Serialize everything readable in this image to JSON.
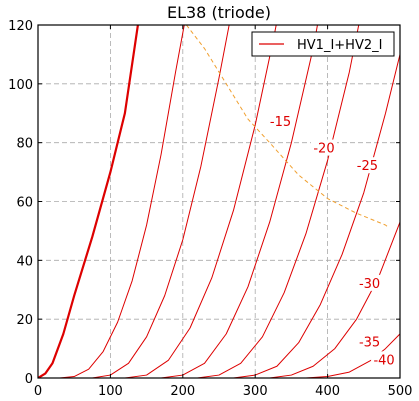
{
  "chart_data": {
    "type": "line",
    "title": "EL38 (triode)",
    "xlabel": "",
    "ylabel": "",
    "xlim": [
      0,
      500
    ],
    "ylim": [
      0,
      120
    ],
    "xticks": [
      0,
      100,
      200,
      300,
      400,
      500
    ],
    "yticks": [
      0,
      20,
      40,
      60,
      80,
      100,
      120
    ],
    "grid": true,
    "legend": {
      "position": "top-right",
      "entries": [
        "HV1_I+HV2_I"
      ]
    },
    "colors": {
      "curve": "#dd0000",
      "load_line": "#f0a030",
      "grid": "#aaaaaa"
    },
    "series": [
      {
        "label": "",
        "bold": true,
        "points": [
          [
            0,
            0
          ],
          [
            10,
            1.5
          ],
          [
            20,
            5
          ],
          [
            35,
            15
          ],
          [
            50,
            28
          ],
          [
            75,
            48
          ],
          [
            100,
            70
          ],
          [
            120,
            90
          ],
          [
            138,
            120
          ]
        ]
      },
      {
        "label": "",
        "bold": false,
        "points": [
          [
            30,
            0
          ],
          [
            50,
            0.5
          ],
          [
            70,
            3
          ],
          [
            90,
            9
          ],
          [
            110,
            19
          ],
          [
            130,
            33
          ],
          [
            150,
            52
          ],
          [
            170,
            76
          ],
          [
            190,
            104
          ],
          [
            202,
            120
          ]
        ]
      },
      {
        "label": "",
        "bold": false,
        "points": [
          [
            75,
            0
          ],
          [
            100,
            1
          ],
          [
            125,
            5
          ],
          [
            150,
            14
          ],
          [
            175,
            28
          ],
          [
            200,
            47
          ],
          [
            225,
            72
          ],
          [
            250,
            102
          ],
          [
            264,
            120
          ]
        ]
      },
      {
        "label": "-15",
        "bold": false,
        "points": [
          [
            120,
            0
          ],
          [
            150,
            1
          ],
          [
            180,
            6
          ],
          [
            210,
            17
          ],
          [
            240,
            34
          ],
          [
            270,
            57
          ],
          [
            300,
            86
          ],
          [
            325,
            115
          ],
          [
            329,
            120
          ]
        ]
      },
      {
        "label": "-20",
        "bold": false,
        "points": [
          [
            170,
            0
          ],
          [
            200,
            1
          ],
          [
            230,
            5
          ],
          [
            260,
            15
          ],
          [
            290,
            31
          ],
          [
            320,
            53
          ],
          [
            350,
            80
          ],
          [
            380,
            112
          ],
          [
            386,
            120
          ]
        ]
      },
      {
        "label": "-25",
        "bold": false,
        "points": [
          [
            220,
            0
          ],
          [
            250,
            1
          ],
          [
            280,
            5
          ],
          [
            310,
            14
          ],
          [
            340,
            29
          ],
          [
            370,
            49
          ],
          [
            400,
            74
          ],
          [
            430,
            104
          ],
          [
            443,
            120
          ]
        ]
      },
      {
        "label": "-30",
        "bold": false,
        "points": [
          [
            270,
            0
          ],
          [
            300,
            1
          ],
          [
            330,
            4
          ],
          [
            360,
            12
          ],
          [
            390,
            25
          ],
          [
            420,
            42
          ],
          [
            450,
            63
          ],
          [
            480,
            90
          ],
          [
            500,
            110
          ]
        ]
      },
      {
        "label": "-35",
        "bold": false,
        "points": [
          [
            320,
            0
          ],
          [
            350,
            1
          ],
          [
            380,
            4
          ],
          [
            410,
            10
          ],
          [
            440,
            20
          ],
          [
            470,
            34
          ],
          [
            500,
            53
          ]
        ]
      },
      {
        "label": "-40",
        "bold": false,
        "points": [
          [
            370,
            0
          ],
          [
            400,
            0.5
          ],
          [
            430,
            2
          ],
          [
            460,
            6
          ],
          [
            480,
            10
          ],
          [
            500,
            15
          ]
        ]
      }
    ],
    "load_line": [
      [
        205,
        120
      ],
      [
        230,
        112
      ],
      [
        260,
        100
      ],
      [
        290,
        88
      ],
      [
        320,
        80
      ],
      [
        360,
        69
      ],
      [
        400,
        61
      ],
      [
        440,
        56
      ],
      [
        480,
        52
      ],
      [
        485,
        51
      ]
    ],
    "curve_labels": [
      {
        "text": "-15",
        "x": 335,
        "y": 87
      },
      {
        "text": "-20",
        "x": 395,
        "y": 78
      },
      {
        "text": "-25",
        "x": 455,
        "y": 72
      },
      {
        "text": "-30",
        "x": 458,
        "y": 32
      },
      {
        "text": "-35",
        "x": 458,
        "y": 12
      },
      {
        "text": "-40",
        "x": 478,
        "y": 6
      }
    ]
  }
}
